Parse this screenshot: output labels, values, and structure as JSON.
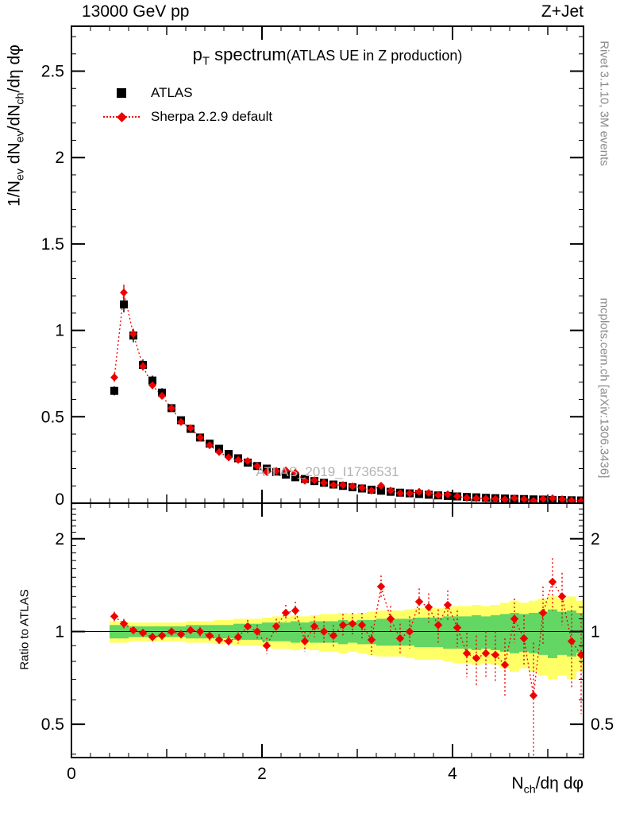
{
  "header": {
    "left": "13000 GeV pp",
    "right": "Z+Jet"
  },
  "title": {
    "main_segments": [
      {
        "t": "p"
      },
      {
        "t": "T",
        "sub": true
      },
      {
        "t": " spectrum"
      }
    ],
    "paren": "(ATLAS UE in Z production)"
  },
  "legend": {
    "atlas_label": "ATLAS",
    "sherpa_label": "Sherpa 2.2.9 default"
  },
  "watermark": "ATLAS_2019_I1736531",
  "side_notes": {
    "top_right": "Rivet 3.1.10,  3M events",
    "bottom_right": "mcplots.cern.ch [arXiv:1306.3436]"
  },
  "axis_labels": {
    "y_top_segments": [
      {
        "t": "1/N"
      },
      {
        "t": "ev",
        "sub": true
      },
      {
        "t": " dN"
      },
      {
        "t": "ev",
        "sub": true
      },
      {
        "t": "/dN"
      },
      {
        "t": "ch",
        "sub": true
      },
      {
        "t": "/dη dφ"
      }
    ],
    "y_ratio": "Ratio to ATLAS",
    "x_segments": [
      {
        "t": "N"
      },
      {
        "t": "ch",
        "sub": true
      },
      {
        "t": "/dη dφ"
      }
    ]
  },
  "chart_data": {
    "type": "scatter",
    "title": "pT spectrum (ATLAS UE in Z production)",
    "xlabel": "Nch/deta dphi",
    "ylabel_top": "1/Nev dNev/dNch/deta dphi",
    "ylabel_bottom": "Ratio to ATLAS",
    "bin_width": 0.1,
    "x": [
      0.45,
      0.55,
      0.65,
      0.75,
      0.85,
      0.95,
      1.05,
      1.15,
      1.25,
      1.35,
      1.45,
      1.55,
      1.65,
      1.75,
      1.85,
      1.95,
      2.05,
      2.15,
      2.25,
      2.35,
      2.45,
      2.55,
      2.65,
      2.75,
      2.85,
      2.95,
      3.05,
      3.15,
      3.25,
      3.35,
      3.45,
      3.55,
      3.65,
      3.75,
      3.85,
      3.95,
      4.05,
      4.15,
      4.25,
      4.35,
      4.45,
      4.55,
      4.65,
      4.75,
      4.85,
      4.95,
      5.05,
      5.15,
      5.25,
      5.35
    ],
    "series": [
      {
        "name": "ATLAS",
        "marker": "square",
        "color": "#000000",
        "values": [
          0.65,
          1.15,
          0.97,
          0.8,
          0.71,
          0.64,
          0.55,
          0.48,
          0.43,
          0.38,
          0.345,
          0.315,
          0.285,
          0.26,
          0.235,
          0.215,
          0.2,
          0.18,
          0.165,
          0.15,
          0.14,
          0.128,
          0.118,
          0.108,
          0.1,
          0.092,
          0.085,
          0.078,
          0.072,
          0.066,
          0.061,
          0.057,
          0.053,
          0.049,
          0.045,
          0.042,
          0.039,
          0.036,
          0.034,
          0.031,
          0.029,
          0.027,
          0.025,
          0.024,
          0.022,
          0.021,
          0.019,
          0.018,
          0.017,
          0.016
        ]
      },
      {
        "name": "Sherpa 2.2.9 default",
        "marker": "diamond",
        "color": "#ee0000",
        "line": "dotted",
        "values": [
          0.728,
          1.219,
          0.98,
          0.792,
          0.682,
          0.621,
          0.55,
          0.47,
          0.434,
          0.38,
          0.335,
          0.296,
          0.265,
          0.25,
          0.244,
          0.215,
          0.18,
          0.187,
          0.19,
          0.176,
          0.13,
          0.133,
          0.118,
          0.105,
          0.105,
          0.098,
          0.089,
          0.073,
          0.101,
          0.073,
          0.058,
          0.057,
          0.066,
          0.059,
          0.047,
          0.051,
          0.04,
          0.031,
          0.028,
          0.026,
          0.024,
          0.021,
          0.028,
          0.023,
          0.014,
          0.024,
          0.028,
          0.023,
          0.016,
          0.013
        ]
      }
    ],
    "ratio": {
      "name": "Sherpa/ATLAS",
      "values": [
        1.12,
        1.06,
        1.01,
        0.99,
        0.96,
        0.97,
        1.0,
        0.98,
        1.01,
        1.0,
        0.97,
        0.94,
        0.93,
        0.96,
        1.04,
        1.0,
        0.9,
        1.04,
        1.15,
        1.17,
        0.93,
        1.04,
        1.0,
        0.97,
        1.05,
        1.06,
        1.05,
        0.94,
        1.4,
        1.1,
        0.95,
        1.0,
        1.25,
        1.2,
        1.05,
        1.22,
        1.03,
        0.85,
        0.82,
        0.85,
        0.84,
        0.78,
        1.1,
        0.95,
        0.62,
        1.15,
        1.45,
        1.3,
        0.93,
        0.84
      ],
      "errors": [
        0.04,
        0.04,
        0.03,
        0.03,
        0.03,
        0.03,
        0.03,
        0.03,
        0.03,
        0.035,
        0.035,
        0.04,
        0.04,
        0.045,
        0.05,
        0.05,
        0.055,
        0.06,
        0.07,
        0.08,
        0.07,
        0.08,
        0.08,
        0.08,
        0.09,
        0.09,
        0.1,
        0.1,
        0.12,
        0.11,
        0.11,
        0.12,
        0.13,
        0.13,
        0.13,
        0.14,
        0.14,
        0.14,
        0.15,
        0.15,
        0.16,
        0.17,
        0.18,
        0.18,
        0.3,
        0.25,
        0.28,
        0.25,
        0.28,
        0.3
      ],
      "green_band_halfwidth": [
        0.05,
        0.05,
        0.04,
        0.04,
        0.04,
        0.04,
        0.04,
        0.04,
        0.05,
        0.05,
        0.05,
        0.05,
        0.05,
        0.06,
        0.06,
        0.06,
        0.07,
        0.07,
        0.07,
        0.08,
        0.07,
        0.08,
        0.08,
        0.08,
        0.09,
        0.08,
        0.09,
        0.09,
        0.1,
        0.1,
        0.1,
        0.1,
        0.11,
        0.11,
        0.11,
        0.12,
        0.12,
        0.12,
        0.13,
        0.12,
        0.13,
        0.14,
        0.15,
        0.14,
        0.15,
        0.16,
        0.18,
        0.16,
        0.17,
        0.15
      ],
      "yellow_band_halfwidth": [
        0.08,
        0.08,
        0.07,
        0.07,
        0.07,
        0.07,
        0.07,
        0.07,
        0.08,
        0.08,
        0.08,
        0.09,
        0.09,
        0.1,
        0.1,
        0.1,
        0.11,
        0.12,
        0.12,
        0.13,
        0.12,
        0.13,
        0.14,
        0.14,
        0.15,
        0.14,
        0.15,
        0.16,
        0.17,
        0.17,
        0.17,
        0.18,
        0.19,
        0.19,
        0.19,
        0.2,
        0.21,
        0.21,
        0.22,
        0.21,
        0.22,
        0.24,
        0.26,
        0.24,
        0.26,
        0.28,
        0.3,
        0.28,
        0.3,
        0.26
      ]
    },
    "axes": {
      "x_min": 0,
      "x_max": 5.375,
      "x_major_ticks": [
        0,
        2,
        4
      ],
      "x_tick_labels": [
        "0",
        "2",
        "4"
      ],
      "top": {
        "y_min": 0,
        "y_max": 2.76,
        "scale": "linear",
        "major_ticks": [
          0,
          0.5,
          1,
          1.5,
          2,
          2.5
        ],
        "tick_labels": [
          "0",
          "0.5",
          "1",
          "1.5",
          "2",
          "2.5"
        ]
      },
      "ratio": {
        "y_min": 0.39,
        "y_max": 2.61,
        "scale": "log",
        "major_ticks": [
          0.5,
          1,
          2
        ],
        "tick_labels": [
          "0.5",
          "1",
          "2"
        ]
      }
    },
    "colors": {
      "atlas": "#000000",
      "sherpa": "#ee0000",
      "band_green": "#63d663",
      "band_yellow": "#ffff66"
    },
    "legend_position": "top-left",
    "grid": false
  }
}
